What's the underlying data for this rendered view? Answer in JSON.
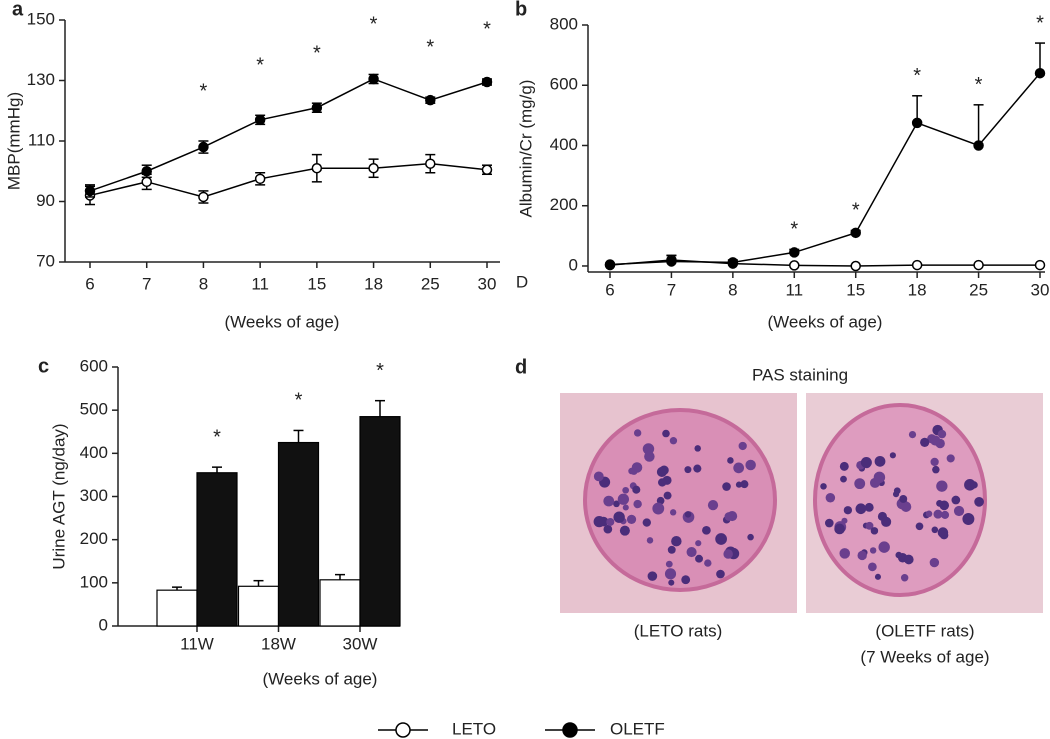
{
  "chart_data": [
    {
      "type": "line",
      "panel": "a",
      "ylabel": "MBP(mmHg)",
      "xlabel": "(Weeks of age)",
      "categories": [
        "6",
        "7",
        "8",
        "11",
        "15",
        "18",
        "25",
        "30"
      ],
      "ylim": [
        70,
        150
      ],
      "yticks": [
        70,
        90,
        110,
        130,
        150
      ],
      "error_bars": "both",
      "series": [
        {
          "name": "LETO",
          "color": "#000000",
          "marker_fill": "#ffffff",
          "values": [
            92,
            96.5,
            91.5,
            97.5,
            101,
            101,
            102.5,
            100.5
          ],
          "errors": [
            3,
            2.5,
            2,
            2,
            4.5,
            3,
            3,
            1.5
          ]
        },
        {
          "name": "OLETF",
          "color": "#000000",
          "marker_fill": "#000000",
          "values": [
            93.5,
            100,
            108,
            117,
            121,
            130.5,
            123.5,
            129.5
          ],
          "errors": [
            2,
            2,
            2,
            1.5,
            1.5,
            1.5,
            1,
            1
          ],
          "labels": [
            null,
            null,
            "*",
            "*",
            "*",
            "*",
            "*",
            "*"
          ]
        }
      ]
    },
    {
      "type": "line",
      "panel": "b",
      "ylabel": "Albumin/Cr (mg/g)",
      "xlabel": "(Weeks of age)",
      "note": "D",
      "categories": [
        "6",
        "7",
        "8",
        "11",
        "15",
        "18",
        "25",
        "30"
      ],
      "ylim": [
        -20,
        800
      ],
      "yticks": [
        0,
        200,
        400,
        600,
        800
      ],
      "error_bars": "up",
      "series": [
        {
          "color": "#000000",
          "marker_fill": "#ffffff",
          "values": [
            3,
            20,
            8,
            2,
            0,
            3,
            3,
            3
          ],
          "errors": [
            3,
            15,
            5,
            2,
            2,
            3,
            3,
            3
          ]
        },
        {
          "color": "#000000",
          "marker_fill": "#000000",
          "values": [
            5,
            15,
            12,
            45,
            110,
            475,
            400,
            640
          ],
          "errors": [
            3,
            20,
            8,
            10,
            8,
            90,
            135,
            100
          ],
          "labels": [
            null,
            null,
            null,
            "*",
            "*",
            "*",
            "*",
            "*"
          ]
        }
      ]
    },
    {
      "type": "bar",
      "panel": "c",
      "ylabel": "Urine AGT (ng/day)",
      "xlabel": "(Weeks of age)",
      "categories": [
        "11W",
        "18W",
        "30W"
      ],
      "ylim": [
        0,
        600
      ],
      "yticks": [
        0,
        100,
        200,
        300,
        400,
        500,
        600
      ],
      "error_bars": "up",
      "series": [
        {
          "color": "#ffffff",
          "values": [
            83,
            92,
            107
          ],
          "errors": [
            7,
            13,
            12
          ]
        },
        {
          "color": "#111111",
          "values": [
            355,
            425,
            485
          ],
          "errors": [
            13,
            28,
            37
          ],
          "labels": [
            "*",
            "*",
            "*"
          ]
        }
      ]
    }
  ],
  "panel_d": {
    "label": "d",
    "title": "PAS staining",
    "images": [
      {
        "caption": "(LETO rats)"
      },
      {
        "caption": "(OLETF rats)",
        "subcaption": "(7 Weeks of age)"
      }
    ]
  }
}
